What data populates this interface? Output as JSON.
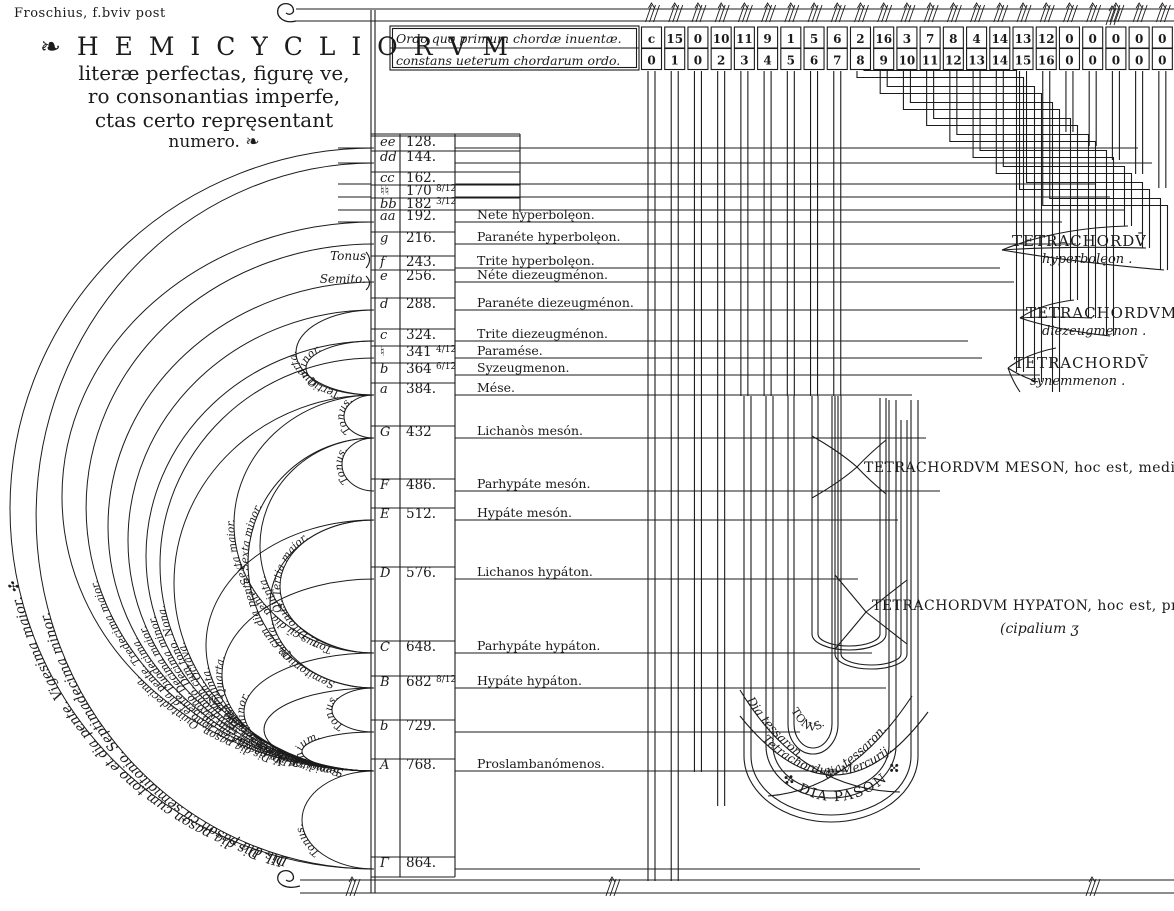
{
  "ink": "#1b1b1b",
  "paper": "#ffffff",
  "caption": "Froschius, f.bviv post",
  "title": {
    "line1": "❧ H E M I C Y C L I O R V M",
    "line2": "literæ perfectas, figurę ve,",
    "line3": "ro consonantias imperfe,",
    "line4": "ctas certo repręsentant",
    "line5": "numero. ❧"
  },
  "header": {
    "row1_label": "Ordo quo primum chordæ inuentæ.",
    "row2_label": "constans ueterum chordarum ordo.",
    "row1_values": [
      "c",
      "15",
      "0",
      "10",
      "11",
      "9",
      "1",
      "5",
      "6",
      "2",
      "16",
      "3",
      "7",
      "8",
      "4",
      "14",
      "13",
      "12",
      "0",
      "0",
      "0",
      "0",
      "0"
    ],
    "row2_values": [
      "0",
      "1",
      "0",
      "2",
      "3",
      "4",
      "5",
      "6",
      "7",
      "8",
      "9",
      "10",
      "11",
      "12",
      "13",
      "14",
      "15",
      "16",
      "0",
      "0",
      "0",
      "0",
      "0"
    ]
  },
  "gamut": [
    {
      "letter": "ee",
      "value": "128."
    },
    {
      "letter": "dd",
      "value": "144."
    },
    {
      "letter": "cc",
      "value": "162."
    },
    {
      "letter": "♮♮",
      "value": "170",
      "frac": "8/12"
    },
    {
      "letter": "bb",
      "value": "182",
      "frac": "3/12"
    },
    {
      "letter": "aa",
      "value": "192.",
      "name": "Nete hyperbolęon."
    },
    {
      "letter": "g",
      "value": "216.",
      "name": "Paranéte hyperbolęon."
    },
    {
      "letter": "f",
      "value": "243.",
      "name": "Trite hyperbolęon."
    },
    {
      "letter": "e",
      "value": "256.",
      "name": "Néte diezeugménon."
    },
    {
      "letter": "d",
      "value": "288.",
      "name": "Paranéte diezeugménon."
    },
    {
      "letter": "c",
      "value": "324.",
      "name": "Trite diezeugménon."
    },
    {
      "letter": "♮",
      "value": "341",
      "frac": "4/12",
      "name": "Paramése."
    },
    {
      "letter": "b",
      "value": "364",
      "frac": "6/12",
      "name": "Syzeugmenon."
    },
    {
      "letter": "a",
      "value": "384.",
      "name": "Mése."
    },
    {
      "letter": "G",
      "value": "432",
      "name": "Lichanòs mesón."
    },
    {
      "letter": "F",
      "value": "486.",
      "name": "Parhypáte mesón."
    },
    {
      "letter": "E",
      "value": "512.",
      "name": "Hypáte mesón."
    },
    {
      "letter": "D",
      "value": "576.",
      "name": "Lichanos hypáton."
    },
    {
      "letter": "C",
      "value": "648.",
      "name": "Parhypáte hypáton."
    },
    {
      "letter": "B",
      "value": "682",
      "frac": "8/12",
      "name": "Hypáte hypáton."
    },
    {
      "letter": "b",
      "value": "729."
    },
    {
      "letter": "A",
      "value": "768.",
      "name": "Proslambanómenos."
    },
    {
      "letter": "Γ",
      "value": "864."
    }
  ],
  "braces": {
    "tonus": "Tonus",
    "semito": "Semito."
  },
  "tetrachords": [
    {
      "line1": "TETRACHORDV̄",
      "line2": "hyperbolęon ."
    },
    {
      "line1": "TETRACHORDVM",
      "line2": "diezeugmenon ."
    },
    {
      "line1": "TETRACHORDV̄",
      "line2": "synemmenon ."
    },
    {
      "line1": "TETRACHORDVM MESON, hoc est, mediarū"
    },
    {
      "line1": "TETRACHORDVM HYPATON, hoc est, prin,",
      "line2": "(cipalium ʒ"
    }
  ],
  "hemicycles": [
    {
      "label": "III. Dis dia pason cum tono et dia pente. Vigesima maior. ✣",
      "from": 0,
      "to": 22,
      "bulge": 10,
      "big": true
    },
    {
      "label": "Dis dia pason cū semiditonio. Septimadecima minor.",
      "from": 1,
      "to": 22,
      "bulge": 36,
      "big": true
    },
    {
      "label": "V. Dis dia pason. Quintadecima.",
      "from": 5,
      "to": 21,
      "bulge": 62
    },
    {
      "label": "Dia pason cum tono et dia pente. Tredecima maior.",
      "from": 6,
      "to": 21,
      "bulge": 86
    },
    {
      "label": "1. Dia pason cū dia pente. Duodecima.",
      "from": 8,
      "to": 21,
      "bulge": 108
    },
    {
      "label": "2. Dia pason cum ditono. Decima maior.",
      "from": 9,
      "to": 21,
      "bulge": 128
    },
    {
      "label": "Dia pason cū semiditonio. Decima minor.",
      "from": 10,
      "to": 21,
      "bulge": 146
    },
    {
      "label": "Dia pason cum tono. Nona.",
      "from": 11,
      "to": 21,
      "bulge": 160
    },
    {
      "label": "I. Dia pason. Octava.",
      "from": 13,
      "to": 21,
      "bulge": 174
    },
    {
      "label": "I. Dia pente. Quinta.",
      "from": 16,
      "to": 21,
      "bulge": 206
    },
    {
      "label": "II. Dia tessaron. Quarta.",
      "from": 17,
      "to": 21,
      "bulge": 222
    },
    {
      "label": "Semiditonus. Tertia minor.",
      "from": 18,
      "to": 21,
      "bulge": 244
    },
    {
      "label": "Tonus.",
      "from": 19,
      "to": 21,
      "bulge": 264
    },
    {
      "label": "Semitonium.",
      "from": 20,
      "to": 21,
      "bulge": 302
    },
    {
      "label": "Tonus.",
      "from": 21,
      "to": 22,
      "bulge": 302
    },
    {
      "label": "Tonus cū dia pente. Sexta maior.",
      "from": 13,
      "to": 18,
      "bulge": 234
    },
    {
      "label": "Semitonium cum dia pente. Sexta minor.",
      "from": 14,
      "to": 19,
      "bulge": 248
    },
    {
      "label": "Quinta.",
      "from": 14,
      "to": 18,
      "bulge": 260
    },
    {
      "label": "Quarta.",
      "from": 16,
      "to": 19,
      "bulge": 270
    },
    {
      "label": "1. Ditonus. Tertia maior.",
      "from": 16,
      "to": 18,
      "bulge": 280
    },
    {
      "label": "Tertia minor.",
      "from": 10,
      "to": 13,
      "bulge": 306
    },
    {
      "label": "Quarta.",
      "from": 9,
      "to": 13,
      "bulge": 296
    },
    {
      "label": "Tonus.",
      "from": 13,
      "to": 14,
      "bulge": 344
    },
    {
      "label": "Tonus.",
      "from": 14,
      "to": 15,
      "bulge": 342
    },
    {
      "label": "Tonus.",
      "from": 19,
      "to": 20,
      "bulge": 332
    }
  ],
  "bottom_arcs": {
    "tonus": "TONVS.",
    "dia_tessaron_left": "Dia tessaron.",
    "dia_tessaron_right": "dia tessaron.",
    "mercurii": "Tetrachordum Mercurij.",
    "dia_pason": "✣ DIA PASON ✣"
  }
}
